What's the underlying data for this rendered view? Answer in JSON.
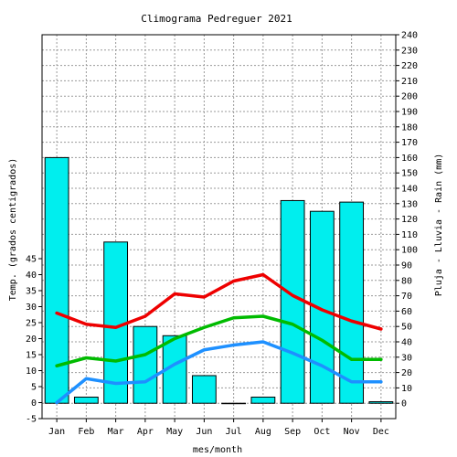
{
  "chart_data": {
    "type": "bar",
    "title": "Climograma Pedreguer 2021",
    "xlabel": "mes/month",
    "ylabel_left": "Temp. (grados centigrados)",
    "ylabel_right": "Pluja - Lluvia - Rain (mm)",
    "categories": [
      "Jan",
      "Feb",
      "Mar",
      "Apr",
      "May",
      "Jun",
      "Jul",
      "Aug",
      "Sep",
      "Oct",
      "Nov",
      "Dec"
    ],
    "left_axis": {
      "range": [
        -5,
        115
      ],
      "ticks": [
        -5,
        0,
        5,
        10,
        15,
        20,
        25,
        30,
        35,
        40,
        45
      ]
    },
    "right_axis": {
      "range": [
        -10,
        240
      ],
      "ticks": [
        0,
        10,
        20,
        30,
        40,
        50,
        60,
        70,
        80,
        90,
        100,
        110,
        120,
        130,
        140,
        150,
        160,
        170,
        180,
        190,
        200,
        210,
        220,
        230,
        240
      ]
    },
    "grid": true,
    "series": [
      {
        "kind": "bar",
        "axis": "right",
        "color": "#00eeee",
        "values": [
          160,
          4,
          105,
          50,
          44,
          18,
          0,
          4,
          132,
          125,
          131,
          1
        ]
      },
      {
        "kind": "line",
        "axis": "left",
        "color": "#ee0000",
        "values": [
          28,
          24.5,
          23.5,
          27,
          34,
          33,
          38,
          40,
          33.5,
          29,
          25.5,
          23
        ]
      },
      {
        "kind": "line",
        "axis": "left",
        "color": "#00bb00",
        "values": [
          11.5,
          14,
          13,
          15,
          20,
          23.5,
          26.5,
          27,
          24.5,
          19.5,
          13.5,
          13.5
        ]
      },
      {
        "kind": "line",
        "axis": "left",
        "color": "#1e90ff",
        "values": [
          0,
          7.5,
          6,
          6.5,
          12,
          16.5,
          18,
          19,
          15.5,
          11.5,
          6.5,
          6.5
        ]
      }
    ]
  }
}
